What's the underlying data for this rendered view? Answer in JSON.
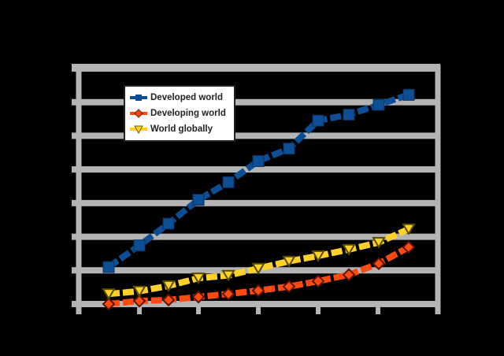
{
  "chart_data": {
    "type": "line",
    "title": "",
    "xlabel": "",
    "ylabel": "",
    "x": [
      1,
      2,
      3,
      4,
      5,
      6,
      7,
      8,
      9,
      10,
      11
    ],
    "ylim": [
      0,
      7
    ],
    "yticks": [
      0,
      1,
      2,
      3,
      4,
      5,
      6,
      7
    ],
    "grid": true,
    "legend_position": "upper-left",
    "series": [
      {
        "name": "Developed world",
        "color": "#0d4f94",
        "marker": "square",
        "values": [
          1.1,
          1.74,
          2.39,
          3.1,
          3.62,
          4.25,
          4.62,
          5.45,
          5.63,
          5.92,
          6.22
        ]
      },
      {
        "name": "Developing world",
        "color": "#ff4b12",
        "marker": "diamond",
        "values": [
          0.0,
          0.09,
          0.12,
          0.21,
          0.3,
          0.4,
          0.52,
          0.68,
          0.87,
          1.2,
          1.69
        ]
      },
      {
        "name": "World globally",
        "color": "#ffd22a",
        "marker": "triangle-down",
        "values": [
          0.3,
          0.38,
          0.54,
          0.77,
          0.85,
          1.06,
          1.27,
          1.43,
          1.62,
          1.83,
          2.23
        ]
      }
    ]
  },
  "legend": {
    "items": [
      {
        "label": "Developed world"
      },
      {
        "label": "Developing world"
      },
      {
        "label": "World globally"
      }
    ]
  },
  "colors": {
    "background": "#000000",
    "grid": "#b4b4b4",
    "legend_bg": "#ffffff"
  }
}
